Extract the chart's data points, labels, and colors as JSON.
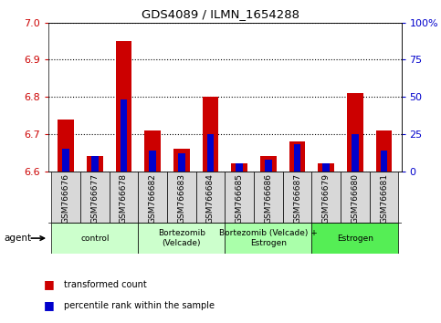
{
  "title": "GDS4089 / ILMN_1654288",
  "samples": [
    "GSM766676",
    "GSM766677",
    "GSM766678",
    "GSM766682",
    "GSM766683",
    "GSM766684",
    "GSM766685",
    "GSM766686",
    "GSM766687",
    "GSM766679",
    "GSM766680",
    "GSM766681"
  ],
  "red_values": [
    6.74,
    6.64,
    6.95,
    6.71,
    6.66,
    6.8,
    6.62,
    6.64,
    6.68,
    6.62,
    6.81,
    6.71
  ],
  "blue_values": [
    15,
    10,
    48,
    14,
    12,
    25,
    5,
    8,
    18,
    5,
    25,
    14
  ],
  "ymin": 6.6,
  "ymax": 7.0,
  "y_ticks": [
    6.6,
    6.7,
    6.8,
    6.9,
    7.0
  ],
  "right_yticks": [
    0,
    25,
    50,
    75,
    100
  ],
  "right_yticklabels": [
    "0",
    "25",
    "50",
    "75",
    "100%"
  ],
  "groups": [
    {
      "label": "control",
      "start": 0,
      "end": 3
    },
    {
      "label": "Bortezomib\n(Velcade)",
      "start": 3,
      "end": 6
    },
    {
      "label": "Bortezomib (Velcade) +\nEstrogen",
      "start": 6,
      "end": 9
    },
    {
      "label": "Estrogen",
      "start": 9,
      "end": 12
    }
  ],
  "group_colors": [
    "#ccffcc",
    "#ccffcc",
    "#aaffaa",
    "#55ee55"
  ],
  "bar_color": "#cc0000",
  "blue_color": "#0000cc",
  "bar_width": 0.55,
  "blue_bar_width": 0.25,
  "left_tick_color": "#cc0000",
  "right_tick_color": "#0000cc",
  "plot_bg_color": "#ffffff",
  "agent_label": "agent",
  "legend": [
    {
      "color": "#cc0000",
      "label": "transformed count"
    },
    {
      "color": "#0000cc",
      "label": "percentile rank within the sample"
    }
  ]
}
